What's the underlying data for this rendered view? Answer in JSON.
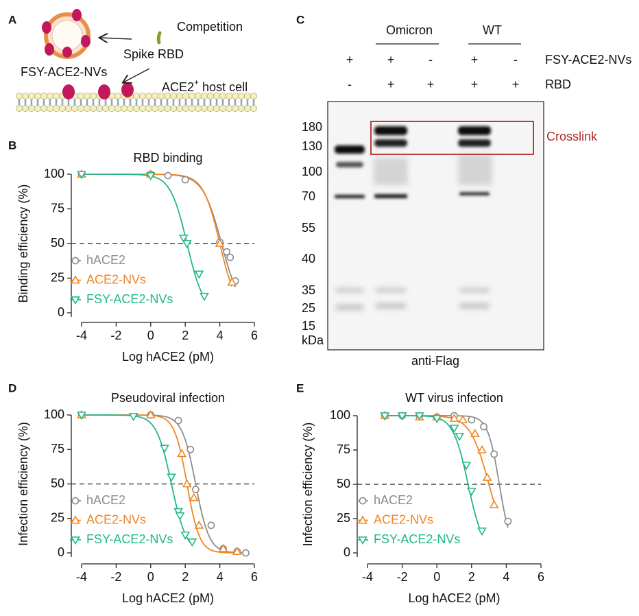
{
  "schematic": {
    "label": "A",
    "competition": "Competition",
    "rbd": "Spike RBD",
    "nvs": "FSY-ACE2-NVs",
    "host": {
      "base": "ACE2",
      "sup": "+",
      "rest": " host cell"
    }
  },
  "blot": {
    "label": "C",
    "groups": [
      "Omicron",
      "WT"
    ],
    "row_labels": [
      "FSY-ACE2-NVs",
      "RBD"
    ],
    "nvs": [
      "+",
      "+",
      "-",
      "+",
      "-"
    ],
    "rbd": [
      "-",
      "+",
      "+",
      "+",
      "+"
    ],
    "markers": [
      "180",
      "130",
      "100",
      "70",
      "55",
      "40",
      "35",
      "25",
      "15",
      "kDa"
    ],
    "box_label": "Crosslink",
    "antibody": "anti-Flag"
  },
  "chart_data": [
    {
      "type": "line",
      "label": "B",
      "title": "RBD binding",
      "x_label": "Log hACE2 (pM)",
      "y_label": "Binding efficiency (%)",
      "xlim": [
        -4,
        6
      ],
      "ylim": [
        0,
        100
      ],
      "xticks": [
        -4,
        -2,
        0,
        2,
        4,
        6
      ],
      "yticks": [
        0,
        25,
        50,
        75,
        100
      ],
      "reference_line": 50,
      "legend": "lower-left",
      "series": [
        {
          "name": "hACE2",
          "color": "#8c8c8c",
          "marker": "circle",
          "x": [
            -4,
            0,
            1,
            2,
            4,
            4.4,
            4.6,
            4.9
          ],
          "values": [
            100,
            100,
            99,
            96,
            51,
            44,
            40,
            23
          ],
          "fit": {
            "logIC50": 4.1,
            "hill": 0.8
          }
        },
        {
          "name": "ACE2-NVs",
          "color": "#f28522",
          "marker": "triangle-up",
          "x": [
            -4,
            0,
            4,
            4.7
          ],
          "values": [
            100,
            100,
            50,
            22
          ],
          "fit": {
            "logIC50": 4.0,
            "hill": 0.9
          }
        },
        {
          "name": "FSY-ACE2-NVs",
          "color": "#1fb88a",
          "marker": "triangle-down",
          "x": [
            -4,
            0,
            1.9,
            2.1,
            2.8,
            3.1
          ],
          "values": [
            100,
            99,
            54,
            50,
            28,
            12
          ],
          "fit": {
            "logIC50": 2.1,
            "hill": 0.9
          }
        }
      ]
    },
    {
      "type": "line",
      "label": "D",
      "title": "Pseudoviral infection",
      "x_label": "Log hACE2 (pM)",
      "y_label": "Infection efficiency (%)",
      "xlim": [
        -4,
        6
      ],
      "ylim": [
        0,
        100
      ],
      "xticks": [
        -4,
        -2,
        0,
        2,
        4,
        6
      ],
      "yticks": [
        0,
        25,
        50,
        75,
        100
      ],
      "reference_line": 50,
      "legend": "lower-left",
      "series": [
        {
          "name": "hACE2",
          "color": "#8c8c8c",
          "marker": "circle",
          "x": [
            -4,
            0,
            1.6,
            2.3,
            2.6,
            3.5,
            4.2,
            5,
            5.5
          ],
          "values": [
            100,
            100,
            96,
            75,
            46,
            20,
            3,
            1,
            0
          ],
          "fit": {
            "logIC50": 2.6,
            "hill": 1.1
          }
        },
        {
          "name": "ACE2-NVs",
          "color": "#f28522",
          "marker": "triangle-up",
          "x": [
            -4,
            0,
            1.8,
            2.1,
            2.5,
            2.8,
            4.2,
            5
          ],
          "values": [
            100,
            100,
            72,
            50,
            40,
            20,
            3,
            1
          ],
          "fit": {
            "logIC50": 2.1,
            "hill": 1.2
          }
        },
        {
          "name": "FSY-ACE2-NVs",
          "color": "#1fb88a",
          "marker": "triangle-down",
          "x": [
            -4,
            -1,
            0.8,
            1.2,
            1.6,
            1.7,
            2,
            2.4
          ],
          "values": [
            100,
            99,
            76,
            55,
            30,
            27,
            13,
            8
          ],
          "fit": {
            "logIC50": 1.2,
            "hill": 1.0
          }
        }
      ]
    },
    {
      "type": "line",
      "label": "E",
      "title": "WT virus infection",
      "x_label": "Log hACE2 (pM)",
      "y_label": "Infection efficiency (%)",
      "xlim": [
        -4,
        6
      ],
      "ylim": [
        0,
        100
      ],
      "xticks": [
        -4,
        -2,
        0,
        2,
        4,
        6
      ],
      "yticks": [
        0,
        25,
        50,
        75,
        100
      ],
      "reference_line": 50,
      "legend": "lower-left",
      "series": [
        {
          "name": "hACE2",
          "color": "#8c8c8c",
          "marker": "circle",
          "x": [
            -3,
            -2,
            -1,
            0,
            1,
            2,
            2.7,
            3.3,
            4.1
          ],
          "values": [
            100,
            100,
            100,
            99,
            100,
            97,
            92,
            72,
            23
          ],
          "fit": {
            "logIC50": 3.6,
            "hill": 1.3
          }
        },
        {
          "name": "ACE2-NVs",
          "color": "#f28522",
          "marker": "triangle-up",
          "x": [
            -3,
            -1,
            0,
            1,
            1.5,
            2.2,
            2.6,
            2.9,
            3.3
          ],
          "values": [
            100,
            99,
            99,
            98,
            97,
            87,
            75,
            55,
            35
          ],
          "fit": {
            "logIC50": 3.0,
            "hill": 0.8
          }
        },
        {
          "name": "FSY-ACE2-NVs",
          "color": "#1fb88a",
          "marker": "triangle-down",
          "x": [
            -3,
            -2,
            -1,
            0,
            1,
            1.3,
            1.7,
            2,
            2.6
          ],
          "values": [
            100,
            100,
            100,
            98,
            91,
            85,
            64,
            45,
            16
          ],
          "fit": {
            "logIC50": 1.8,
            "hill": 1.0
          }
        }
      ]
    }
  ]
}
